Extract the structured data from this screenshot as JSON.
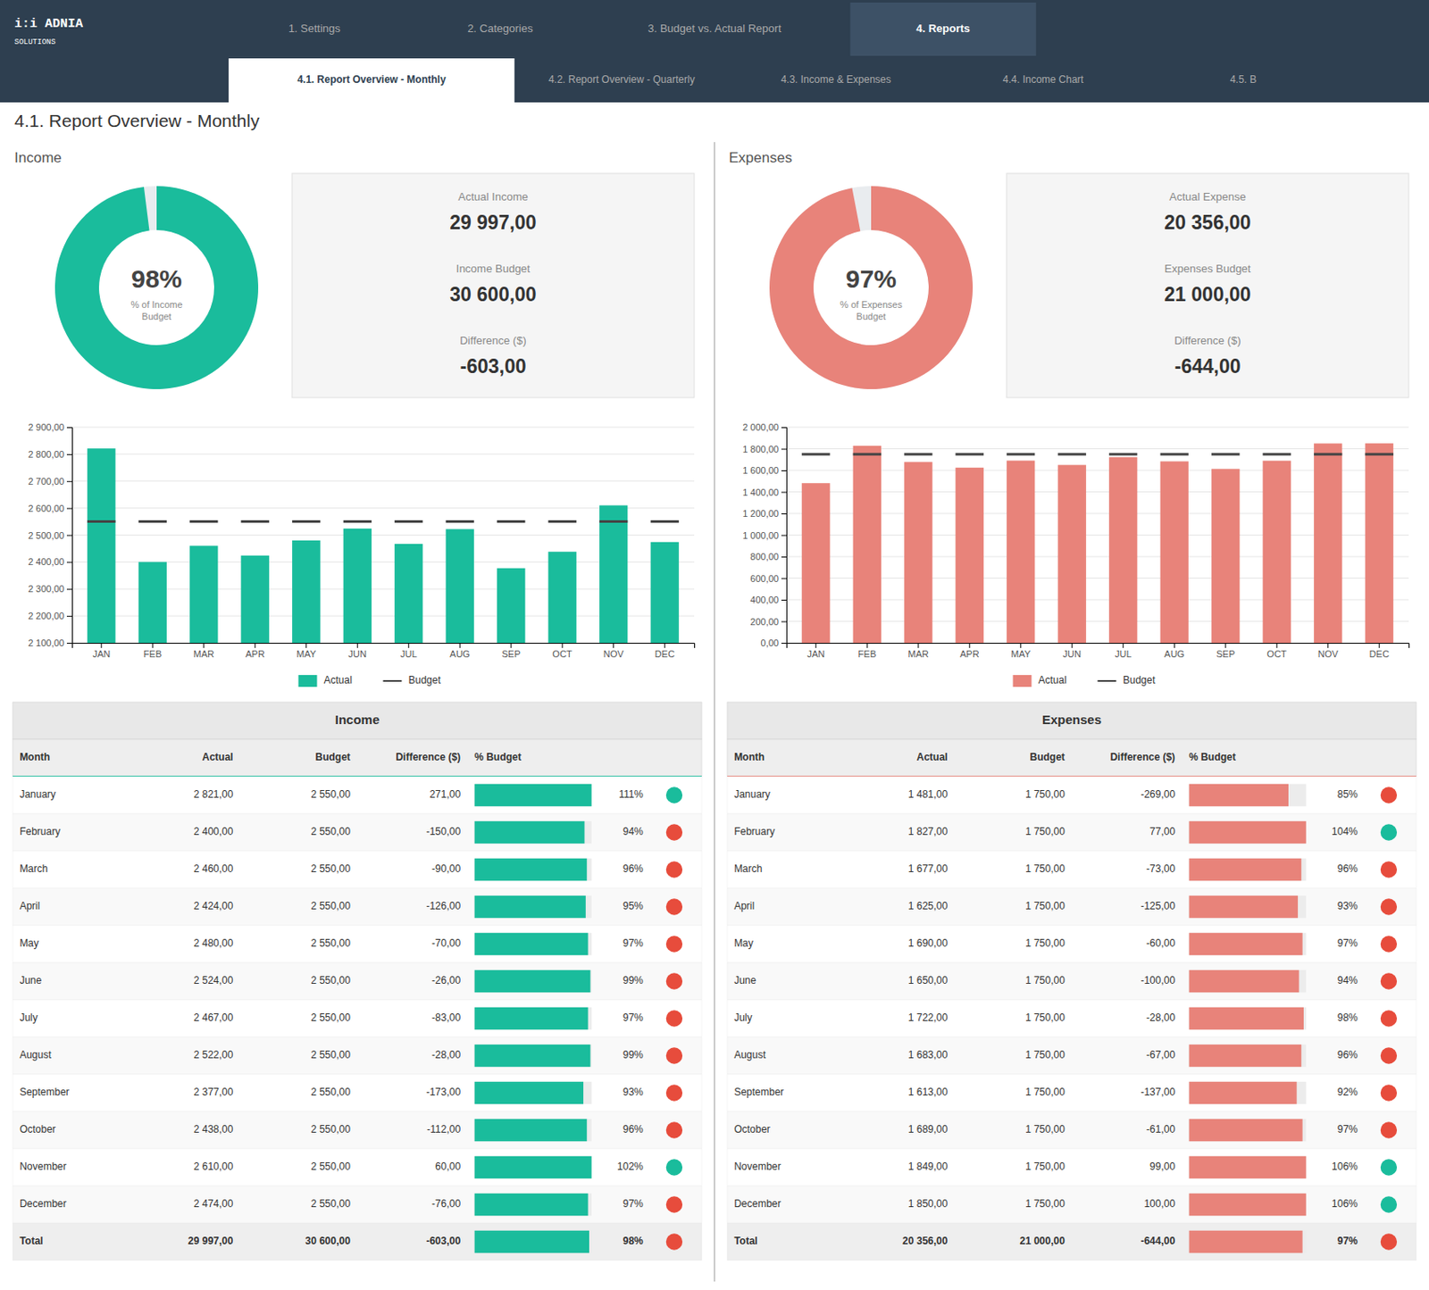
{
  "page": {
    "logo": "i:i ADNIA",
    "logo_sub": "SOLUTIONS",
    "title": "4.1. Report Overview - Monthly",
    "nav_items": [
      "1. Settings",
      "2. Categories",
      "3. Budget vs. Actual Report",
      "4. Reports"
    ],
    "active_nav": "4. Reports",
    "sub_nav_items": [
      "4.1. Report Overview - Monthly",
      "4.2. Report Overview - Quarterly",
      "4.3. Income & Expenses",
      "4.4. Income Chart",
      "4.5. B"
    ],
    "active_sub_nav": "4.1. Report Overview - Monthly"
  },
  "chart_data": [
    {
      "type": "donut",
      "title": "Income",
      "subtitle": "% of Income\nBudget",
      "values": [
        98
      ],
      "value_labels": [
        "98%"
      ],
      "color": "#1abc9c",
      "ylim": [
        0,
        100
      ]
    },
    {
      "type": "stats",
      "categories": [
        "Actual Income",
        "Income Budget",
        "Difference ($)"
      ],
      "values": [
        29997,
        30600,
        -603
      ],
      "value_labels": [
        "29 997,00",
        "30 600,00",
        "-603,00"
      ]
    },
    {
      "type": "bar",
      "categories": [
        "JAN",
        "FEB",
        "MAR",
        "APR",
        "MAY",
        "JUN",
        "JUL",
        "AUG",
        "SEP",
        "OCT",
        "NOV",
        "DEC"
      ],
      "series": [
        {
          "name": "Actual",
          "type": "bar",
          "color": "#1abc9c",
          "values": [
            2821,
            2400,
            2460,
            2424,
            2480,
            2524,
            2467,
            2522,
            2377,
            2438,
            2610,
            2474
          ]
        },
        {
          "name": "Budget",
          "type": "scatter",
          "marker": "dash",
          "color": "#444444",
          "values": [
            2550,
            2550,
            2550,
            2550,
            2550,
            2550,
            2550,
            2550,
            2550,
            2550,
            2550,
            2550
          ]
        }
      ],
      "ylim": [
        2100,
        2900
      ],
      "yticks": [
        {
          "value": 2100,
          "label": "2 100,00"
        },
        {
          "value": 2200,
          "label": "2 200,00"
        },
        {
          "value": 2300,
          "label": "2 300,00"
        },
        {
          "value": 2400,
          "label": "2 400,00"
        },
        {
          "value": 2500,
          "label": "2 500,00"
        },
        {
          "value": 2600,
          "label": "2 600,00"
        },
        {
          "value": 2700,
          "label": "2 700,00"
        },
        {
          "value": 2800,
          "label": "2 800,00"
        },
        {
          "value": 2900,
          "label": "2 900,00"
        }
      ],
      "grid": true,
      "legend": "bottom"
    },
    {
      "type": "table",
      "title": "Income",
      "xlabel": "Month",
      "categories": [
        "January",
        "February",
        "March",
        "April",
        "May",
        "June",
        "July",
        "August",
        "September",
        "October",
        "November",
        "December",
        "Total"
      ],
      "series": [
        {
          "name": "Actual",
          "values": [
            2821,
            2400,
            2460,
            2424,
            2480,
            2524,
            2467,
            2522,
            2377,
            2438,
            2610,
            2474,
            29997
          ],
          "value_labels": [
            "2 821,00",
            "2 400,00",
            "2 460,00",
            "2 424,00",
            "2 480,00",
            "2 524,00",
            "2 467,00",
            "2 522,00",
            "2 377,00",
            "2 438,00",
            "2 610,00",
            "2 474,00",
            "29 997,00"
          ]
        },
        {
          "name": "Budget",
          "values": [
            2550,
            2550,
            2550,
            2550,
            2550,
            2550,
            2550,
            2550,
            2550,
            2550,
            2550,
            2550,
            30600
          ],
          "value_labels": [
            "2 550,00",
            "2 550,00",
            "2 550,00",
            "2 550,00",
            "2 550,00",
            "2 550,00",
            "2 550,00",
            "2 550,00",
            "2 550,00",
            "2 550,00",
            "2 550,00",
            "2 550,00",
            "30 600,00"
          ]
        },
        {
          "name": "Difference ($)",
          "values": [
            271,
            -150,
            -90,
            -126,
            -70,
            -26,
            -83,
            -28,
            -173,
            -112,
            60,
            -76,
            -603
          ],
          "value_labels": [
            "271,00",
            "-150,00",
            "-90,00",
            "-126,00",
            "-70,00",
            "-26,00",
            "-83,00",
            "-28,00",
            "-173,00",
            "-112,00",
            "60,00",
            "-76,00",
            "-603,00"
          ]
        },
        {
          "name": "% Budget",
          "type": "bar",
          "color": "#1abc9c",
          "marker": "circle",
          "values": [
            111,
            94,
            96,
            95,
            97,
            99,
            97,
            99,
            93,
            96,
            102,
            97,
            98
          ],
          "value_labels": [
            "111%",
            "94%",
            "96%",
            "95%",
            "97%",
            "99%",
            "97%",
            "99%",
            "93%",
            "96%",
            "102%",
            "97%",
            "98%"
          ],
          "colors": [
            "#1abc9c",
            "#e74c3c",
            "#e74c3c",
            "#e74c3c",
            "#e74c3c",
            "#e74c3c",
            "#e74c3c",
            "#e74c3c",
            "#e74c3c",
            "#e74c3c",
            "#1abc9c",
            "#e74c3c",
            "#e74c3c"
          ]
        }
      ],
      "xlim": [
        0,
        100
      ]
    },
    {
      "type": "donut",
      "title": "Expenses",
      "subtitle": "% of Expenses\nBudget",
      "values": [
        97
      ],
      "value_labels": [
        "97%"
      ],
      "color": "#e8837a",
      "ylim": [
        0,
        100
      ]
    },
    {
      "type": "stats",
      "categories": [
        "Actual Expense",
        "Expenses Budget",
        "Difference ($)"
      ],
      "values": [
        20356,
        21000,
        -644
      ],
      "value_labels": [
        "20 356,00",
        "21 000,00",
        "-644,00"
      ]
    },
    {
      "type": "bar",
      "categories": [
        "JAN",
        "FEB",
        "MAR",
        "APR",
        "MAY",
        "JUN",
        "JUL",
        "AUG",
        "SEP",
        "OCT",
        "NOV",
        "DEC"
      ],
      "series": [
        {
          "name": "Actual",
          "type": "bar",
          "color": "#e8837a",
          "values": [
            1481,
            1827,
            1677,
            1625,
            1690,
            1650,
            1722,
            1683,
            1613,
            1689,
            1849,
            1850
          ]
        },
        {
          "name": "Budget",
          "type": "scatter",
          "marker": "dash",
          "color": "#444444",
          "values": [
            1750,
            1750,
            1750,
            1750,
            1750,
            1750,
            1750,
            1750,
            1750,
            1750,
            1750,
            1750
          ]
        }
      ],
      "ylim": [
        0,
        2000
      ],
      "yticks": [
        {
          "value": 0,
          "label": "0,00"
        },
        {
          "value": 200,
          "label": "200,00"
        },
        {
          "value": 400,
          "label": "400,00"
        },
        {
          "value": 600,
          "label": "600,00"
        },
        {
          "value": 800,
          "label": "800,00"
        },
        {
          "value": 1000,
          "label": "1 000,00"
        },
        {
          "value": 1200,
          "label": "1 200,00"
        },
        {
          "value": 1400,
          "label": "1 400,00"
        },
        {
          "value": 1600,
          "label": "1 600,00"
        },
        {
          "value": 1800,
          "label": "1 800,00"
        },
        {
          "value": 2000,
          "label": "2 000,00"
        }
      ],
      "grid": true,
      "legend": "bottom"
    },
    {
      "type": "table",
      "title": "Expenses",
      "xlabel": "Month",
      "categories": [
        "January",
        "February",
        "March",
        "April",
        "May",
        "June",
        "July",
        "August",
        "September",
        "October",
        "November",
        "December",
        "Total"
      ],
      "series": [
        {
          "name": "Actual",
          "values": [
            1481,
            1827,
            1677,
            1625,
            1690,
            1650,
            1722,
            1683,
            1613,
            1689,
            1849,
            1850,
            20356
          ],
          "value_labels": [
            "1 481,00",
            "1 827,00",
            "1 677,00",
            "1 625,00",
            "1 690,00",
            "1 650,00",
            "1 722,00",
            "1 683,00",
            "1 613,00",
            "1 689,00",
            "1 849,00",
            "1 850,00",
            "20 356,00"
          ]
        },
        {
          "name": "Budget",
          "values": [
            1750,
            1750,
            1750,
            1750,
            1750,
            1750,
            1750,
            1750,
            1750,
            1750,
            1750,
            1750,
            21000
          ],
          "value_labels": [
            "1 750,00",
            "1 750,00",
            "1 750,00",
            "1 750,00",
            "1 750,00",
            "1 750,00",
            "1 750,00",
            "1 750,00",
            "1 750,00",
            "1 750,00",
            "1 750,00",
            "1 750,00",
            "21 000,00"
          ]
        },
        {
          "name": "Difference ($)",
          "values": [
            -269,
            77,
            -73,
            -125,
            -60,
            -100,
            -28,
            -67,
            -137,
            -61,
            99,
            100,
            -644
          ],
          "value_labels": [
            "-269,00",
            "77,00",
            "-73,00",
            "-125,00",
            "-60,00",
            "-100,00",
            "-28,00",
            "-67,00",
            "-137,00",
            "-61,00",
            "99,00",
            "100,00",
            "-644,00"
          ]
        },
        {
          "name": "% Budget",
          "type": "bar",
          "color": "#e8837a",
          "marker": "circle",
          "values": [
            85,
            104,
            96,
            93,
            97,
            94,
            98,
            96,
            92,
            97,
            106,
            106,
            97
          ],
          "value_labels": [
            "85%",
            "104%",
            "96%",
            "93%",
            "97%",
            "94%",
            "98%",
            "96%",
            "92%",
            "97%",
            "106%",
            "106%",
            "97%"
          ],
          "colors": [
            "#e74c3c",
            "#1abc9c",
            "#e74c3c",
            "#e74c3c",
            "#e74c3c",
            "#e74c3c",
            "#e74c3c",
            "#e74c3c",
            "#e74c3c",
            "#e74c3c",
            "#1abc9c",
            "#1abc9c",
            "#e74c3c"
          ]
        }
      ],
      "xlim": [
        0,
        100
      ]
    }
  ]
}
